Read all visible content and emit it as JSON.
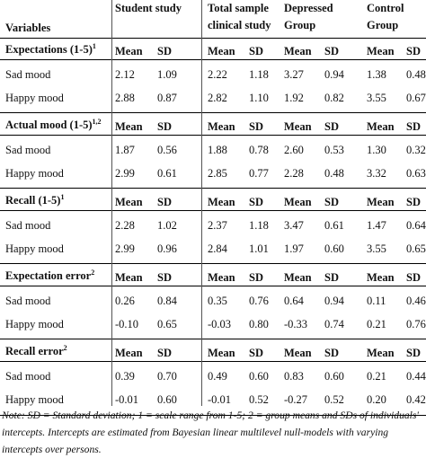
{
  "header": {
    "variables": "Variables",
    "groups": [
      {
        "line1": "Student study",
        "line2": ""
      },
      {
        "line1": "Total sample",
        "line2": "clinical study"
      },
      {
        "line1": "Depressed",
        "line2": "Group"
      },
      {
        "line1": "Control",
        "line2": "Group"
      }
    ]
  },
  "col_labels": {
    "mean": "Mean",
    "sd": "SD"
  },
  "sections": [
    {
      "title": "Expectations (1-5)",
      "sup": "1",
      "rows": [
        {
          "label": "Sad mood",
          "values": [
            "2.12",
            "1.09",
            "2.22",
            "1.18",
            "3.27",
            "0.94",
            "1.38",
            "0.48"
          ]
        },
        {
          "label": "Happy mood",
          "values": [
            "2.88",
            "0.87",
            "2.82",
            "1.10",
            "1.92",
            "0.82",
            "3.55",
            "0.67"
          ]
        }
      ]
    },
    {
      "title": "Actual mood (1-5)",
      "sup": "1,2",
      "rows": [
        {
          "label": "Sad mood",
          "values": [
            "1.87",
            "0.56",
            "1.88",
            "0.78",
            "2.60",
            "0.53",
            "1.30",
            "0.32"
          ]
        },
        {
          "label": "Happy mood",
          "values": [
            "2.99",
            "0.61",
            "2.85",
            "0.77",
            "2.28",
            "0.48",
            "3.32",
            "0.63"
          ]
        }
      ]
    },
    {
      "title": "Recall (1-5)",
      "sup": "1",
      "rows": [
        {
          "label": "Sad mood",
          "values": [
            "2.28",
            "1.02",
            "2.37",
            "1.18",
            "3.47",
            "0.61",
            "1.47",
            "0.64"
          ]
        },
        {
          "label": "Happy mood",
          "values": [
            "2.99",
            "0.96",
            "2.84",
            "1.01",
            "1.97",
            "0.60",
            "3.55",
            "0.65"
          ]
        }
      ]
    },
    {
      "title": "Expectation error",
      "sup": "2",
      "rows": [
        {
          "label": "Sad mood",
          "values": [
            "0.26",
            "0.84",
            "0.35",
            "0.76",
            "0.64",
            "0.94",
            "0.11",
            "0.46"
          ]
        },
        {
          "label": "Happy mood",
          "values": [
            "-0.10",
            "0.65",
            "-0.03",
            "0.80",
            "-0.33",
            "0.74",
            "0.21",
            "0.76"
          ]
        }
      ]
    },
    {
      "title": "Recall error",
      "sup": "2",
      "rows": [
        {
          "label": "Sad mood",
          "values": [
            "0.39",
            "0.70",
            "0.49",
            "0.60",
            "0.83",
            "0.60",
            "0.21",
            "0.44"
          ]
        },
        {
          "label": "Happy mood",
          "values": [
            "-0.01",
            "0.60",
            "-0.01",
            "0.52",
            "-0.27",
            "0.52",
            "0.20",
            "0.42"
          ]
        }
      ]
    }
  ],
  "note": "Note: SD = Standard deviation; 1 = scale range from 1-5; 2 = group means and SDs of individuals' intercepts. Intercepts are estimated from Bayesian linear multilevel null-models with varying intercepts over persons."
}
